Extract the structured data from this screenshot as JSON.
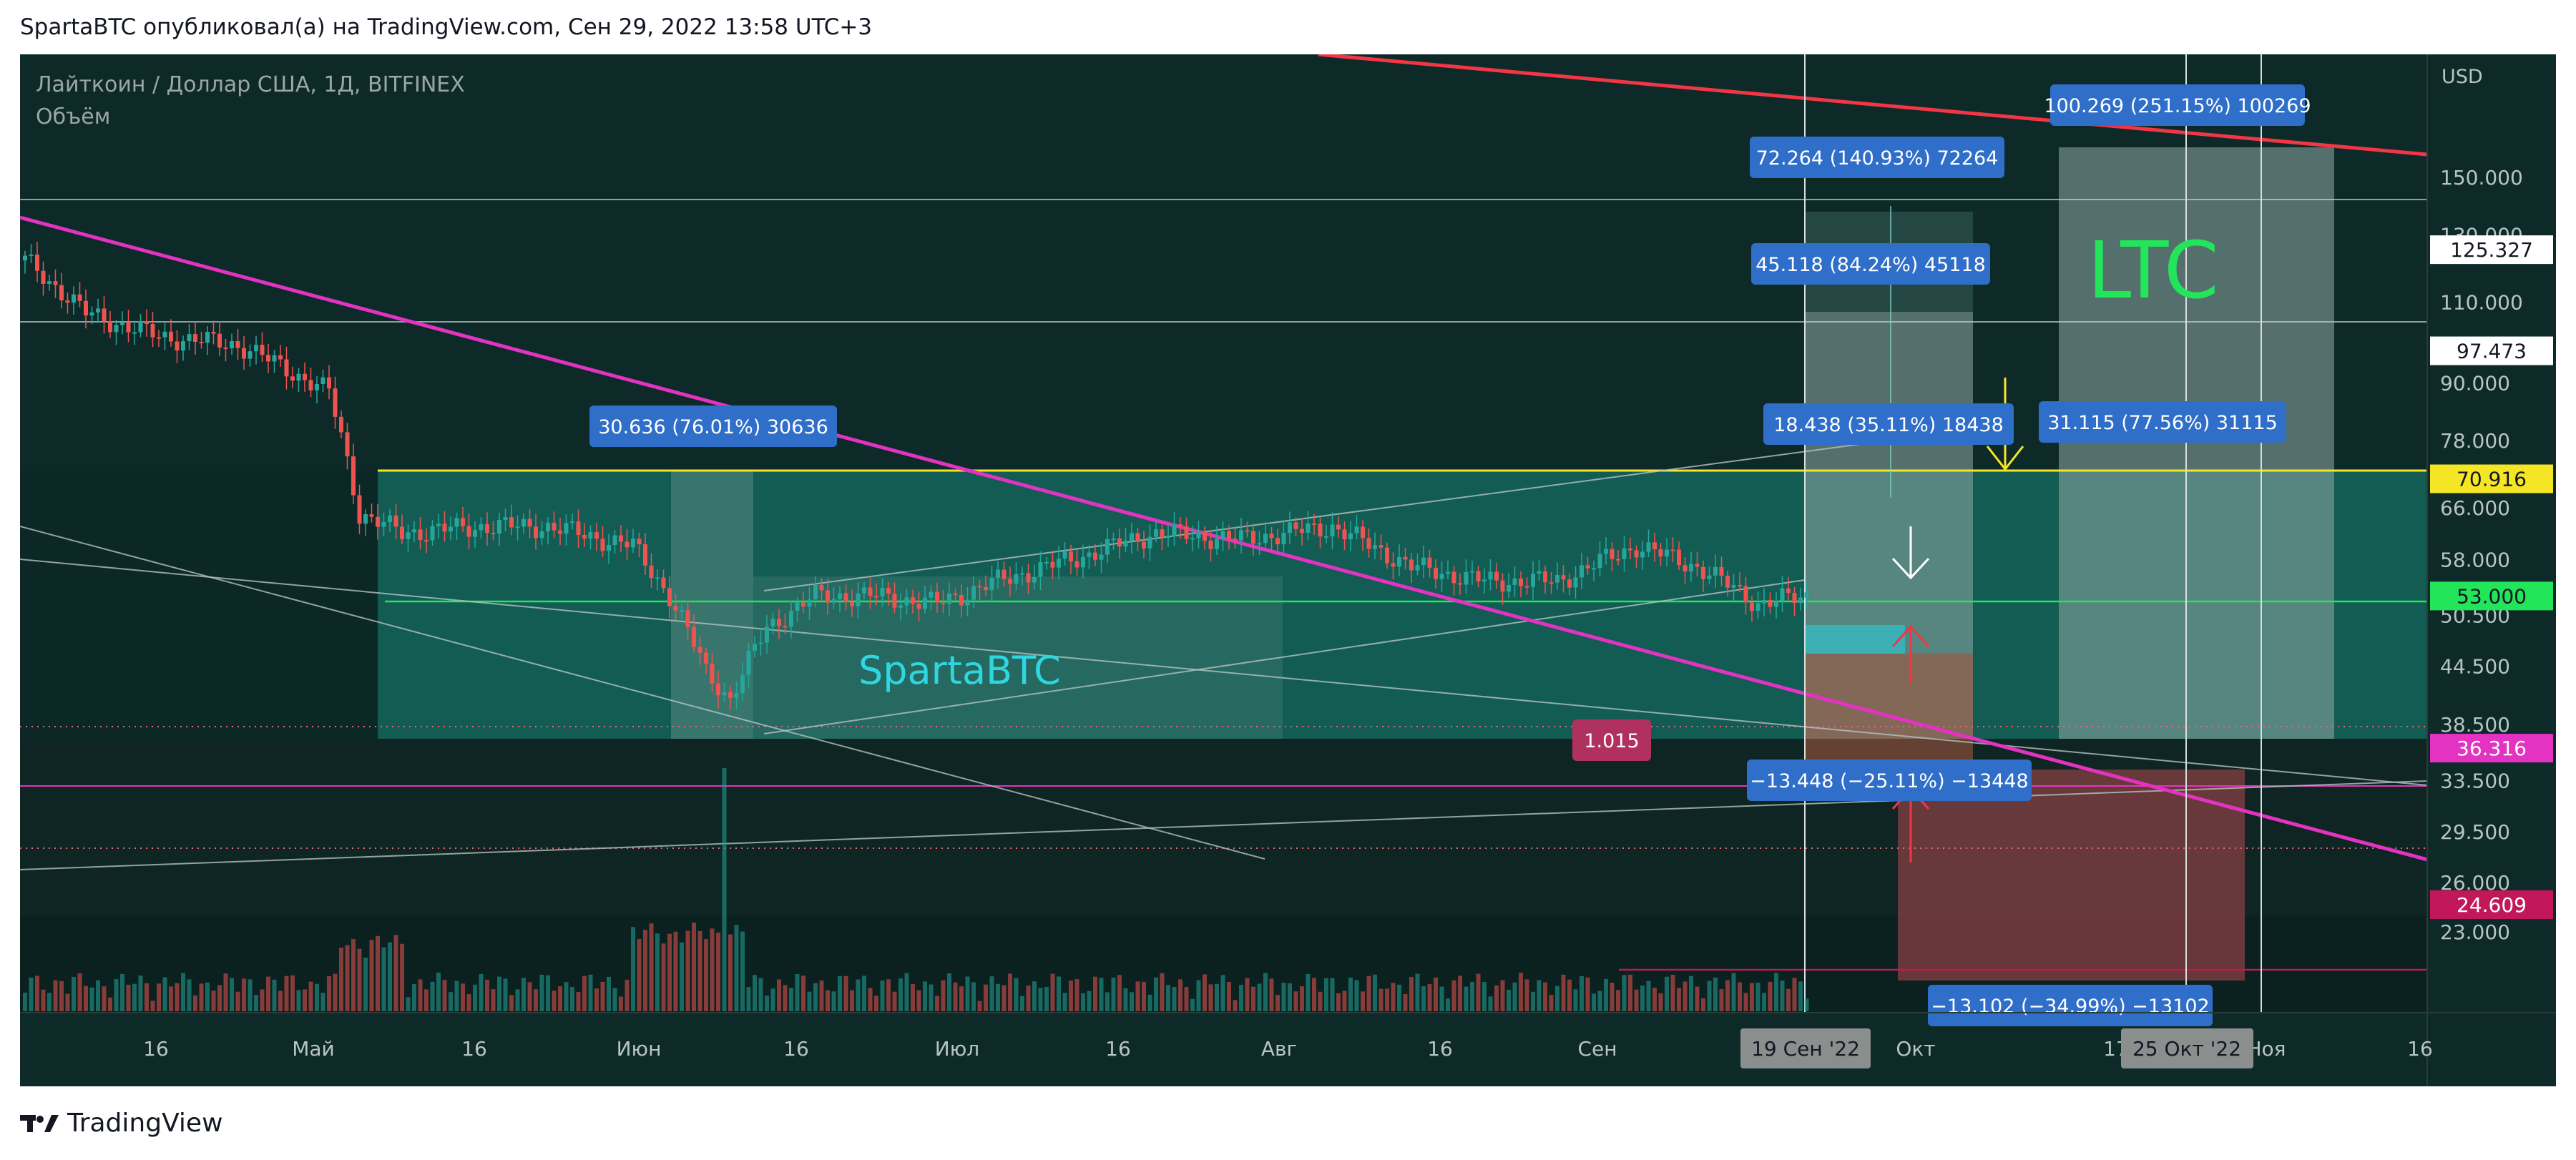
{
  "header": "SpartaBTC опубликовал(а) на TradingView.com, Сен 29, 2022 13:58 UTC+3",
  "footer": {
    "brand": "TradingView"
  },
  "chart_data": {
    "type": "candlestick",
    "symbol_title": "Лайткоин / Доллар США, 1Д, BITFINEX",
    "indicator": "Объём",
    "currency": "USD",
    "price_scale": "log",
    "y_ticks": [
      "150.000",
      "130.000",
      "110.000",
      "90.000",
      "78.000",
      "66.000",
      "58.000",
      "50.500",
      "44.500",
      "38.500",
      "33.500",
      "29.500",
      "26.000",
      "23.000"
    ],
    "x_ticks": [
      "16",
      "Май",
      "16",
      "Июн",
      "16",
      "Июл",
      "16",
      "Авг",
      "16",
      "Сен",
      "Окт",
      "17",
      "Ноя",
      "16"
    ],
    "price_tags": [
      {
        "label": "125.327",
        "value": 125.327,
        "color": "#ffffff"
      },
      {
        "label": "97.473",
        "value": 97.473,
        "color": "#ffffff"
      },
      {
        "label": "70.916",
        "value": 70.916,
        "color": "#f5e625"
      },
      {
        "label": "53.000",
        "value": 53.0,
        "color": "#22e55a"
      },
      {
        "label": "36.316",
        "value": 36.316,
        "color": "#e432c2"
      },
      {
        "label": "24.609",
        "value": 24.609,
        "color": "#c2185b"
      }
    ],
    "date_tags": [
      "19 Сен '22",
      "25 Окт '22"
    ],
    "measure_labels": [
      "100.269 (251.15%) 100269",
      "72.264 (140.93%) 72264",
      "45.118 (84.24%) 45118",
      "18.438 (35.11%) 18438",
      "31.115 (77.56%) 31115",
      "30.636 (76.01%) 30636",
      "−13.448 (−25.11%) −13448",
      "−13.102 (−34.99%) −13102"
    ],
    "ratio_label": "1.015",
    "annotations": {
      "ticker": "LTC",
      "author": "SpartaBTC"
    },
    "colors": {
      "background": "#0d2a29",
      "up": "#26a69a",
      "down": "#ef5350",
      "resistance": "#f23645",
      "downtrend": "#e432c2",
      "range_box": "#166d63",
      "target_box": "#5f8f89",
      "loss_box": "#7a3a3a"
    },
    "series": [
      {
        "name": "close_waypoints_day_price",
        "points": [
          [
            0,
            122
          ],
          [
            10,
            107
          ],
          [
            22,
            101
          ],
          [
            35,
            99
          ],
          [
            50,
            88
          ],
          [
            55,
            65
          ],
          [
            62,
            62
          ],
          [
            75,
            63
          ],
          [
            86,
            63
          ],
          [
            100,
            60
          ],
          [
            106,
            53
          ],
          [
            112,
            44
          ],
          [
            116,
            41
          ],
          [
            122,
            49
          ],
          [
            130,
            53
          ],
          [
            140,
            53
          ],
          [
            150,
            52
          ],
          [
            160,
            55
          ],
          [
            172,
            58
          ],
          [
            186,
            62
          ],
          [
            200,
            61
          ],
          [
            215,
            63
          ],
          [
            228,
            57
          ],
          [
            240,
            55
          ],
          [
            252,
            55
          ],
          [
            265,
            60
          ],
          [
            275,
            57
          ],
          [
            285,
            52
          ],
          [
            293,
            53
          ]
        ]
      }
    ]
  }
}
